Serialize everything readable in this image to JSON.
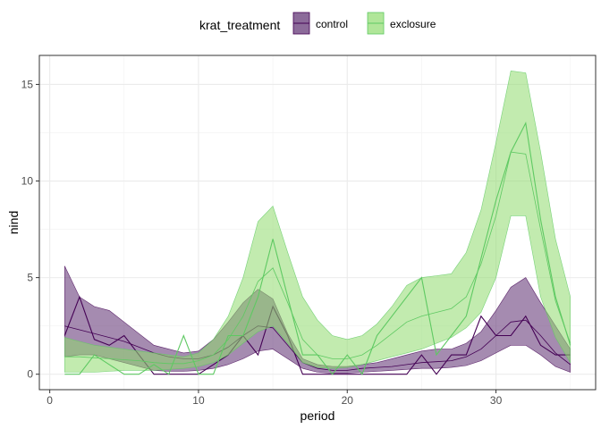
{
  "chart_data": {
    "type": "area",
    "xlabel": "period",
    "ylabel": "nind",
    "xlim": [
      -0.7,
      36.7
    ],
    "ylim": [
      -0.8,
      16.5
    ],
    "xticks": [
      0,
      10,
      20,
      30
    ],
    "yticks": [
      0,
      5,
      10,
      15
    ],
    "grid": true,
    "legend": {
      "title": "krat_treatment",
      "placement": "top"
    },
    "series": [
      {
        "name": "control",
        "color": "#440154",
        "fill": "#5b2c6f",
        "x": [
          1,
          2,
          3,
          4,
          5,
          6,
          7,
          8,
          9,
          10,
          11,
          12,
          13,
          14,
          15,
          16,
          17,
          18,
          19,
          20,
          21,
          22,
          23,
          24,
          25,
          26,
          27,
          28,
          29,
          30,
          31,
          32,
          33,
          34,
          35
        ],
        "band_upper": [
          5.6,
          4.0,
          3.5,
          3.3,
          2.7,
          2.1,
          1.5,
          1.3,
          1.1,
          1.2,
          1.8,
          2.7,
          3.7,
          4.4,
          3.9,
          2.1,
          0.8,
          0.5,
          0.4,
          0.4,
          0.5,
          0.6,
          0.8,
          1.0,
          1.2,
          1.3,
          1.3,
          1.6,
          2.2,
          3.3,
          4.5,
          5.0,
          3.7,
          2.5,
          1.3
        ],
        "band_lower": [
          0.9,
          1.0,
          1.0,
          0.8,
          0.6,
          0.4,
          0.2,
          0.15,
          0.15,
          0.2,
          0.3,
          0.5,
          0.8,
          1.2,
          1.3,
          0.8,
          0.3,
          0.1,
          0.05,
          0.05,
          0.1,
          0.15,
          0.2,
          0.25,
          0.3,
          0.3,
          0.35,
          0.45,
          0.7,
          1.1,
          1.5,
          1.5,
          1.0,
          0.4,
          0.1
        ],
        "observed": [
          2.0,
          4.0,
          1.8,
          1.5,
          2.0,
          1.0,
          0.0,
          0.0,
          0.0,
          0.0,
          0.5,
          1.0,
          2.0,
          1.0,
          3.5,
          2.0,
          0.0,
          0.0,
          0.0,
          0.0,
          0.0,
          0.0,
          0.0,
          0.0,
          1.0,
          0.0,
          1.0,
          1.0,
          3.0,
          2.0,
          2.0,
          3.0,
          1.5,
          1.0,
          1.0
        ],
        "fitted": [
          2.5,
          2.3,
          2.1,
          1.9,
          1.7,
          1.4,
          1.1,
          0.9,
          0.8,
          0.8,
          1.0,
          1.4,
          2.0,
          2.5,
          2.4,
          1.5,
          0.6,
          0.3,
          0.2,
          0.2,
          0.3,
          0.35,
          0.4,
          0.5,
          0.6,
          0.65,
          0.7,
          0.9,
          1.3,
          2.0,
          2.7,
          2.8,
          2.0,
          1.1,
          0.5
        ]
      },
      {
        "name": "exclosure",
        "color": "#5ec962",
        "fill": "#8fdb6e",
        "x": [
          1,
          2,
          3,
          4,
          5,
          6,
          7,
          8,
          9,
          10,
          11,
          12,
          13,
          14,
          15,
          16,
          17,
          18,
          19,
          20,
          21,
          22,
          23,
          24,
          25,
          26,
          27,
          28,
          29,
          30,
          31,
          32,
          33,
          34,
          35
        ],
        "band_upper": [
          1.9,
          1.7,
          1.5,
          1.4,
          1.3,
          1.2,
          1.1,
          1.0,
          0.9,
          1.1,
          1.8,
          3.0,
          5.0,
          7.9,
          8.7,
          6.3,
          4.0,
          2.8,
          2.0,
          1.8,
          2.0,
          2.6,
          3.5,
          4.6,
          5.0,
          5.1,
          5.2,
          6.3,
          8.5,
          12.0,
          15.7,
          15.6,
          11.5,
          7.0,
          4.0
        ],
        "band_lower": [
          0.1,
          0.1,
          0.1,
          0.15,
          0.2,
          0.2,
          0.2,
          0.25,
          0.3,
          0.4,
          0.6,
          1.0,
          1.6,
          2.2,
          2.5,
          1.6,
          0.6,
          0.35,
          0.3,
          0.35,
          0.5,
          0.7,
          0.9,
          1.1,
          1.3,
          1.6,
          1.9,
          2.4,
          3.2,
          5.0,
          8.2,
          8.2,
          4.0,
          1.9,
          0.6
        ],
        "observed": [
          0.0,
          0.0,
          1.0,
          0.5,
          0.0,
          0.0,
          0.5,
          0.0,
          2.0,
          0.0,
          0.0,
          2.0,
          2.0,
          4.0,
          7.0,
          4.0,
          1.0,
          1.0,
          0.0,
          1.0,
          0.0,
          2.0,
          3.0,
          4.0,
          5.0,
          1.0,
          2.0,
          3.0,
          6.0,
          9.0,
          11.5,
          13.0,
          8.0,
          4.0,
          1.5
        ],
        "fitted": [
          0.9,
          0.9,
          0.85,
          0.8,
          0.75,
          0.7,
          0.6,
          0.55,
          0.55,
          0.7,
          1.0,
          1.8,
          3.0,
          4.8,
          5.5,
          3.7,
          1.8,
          1.0,
          0.8,
          0.8,
          1.0,
          1.5,
          2.1,
          2.7,
          3.0,
          3.2,
          3.4,
          4.0,
          5.7,
          8.2,
          11.5,
          11.4,
          7.5,
          3.8,
          1.6
        ]
      }
    ]
  }
}
